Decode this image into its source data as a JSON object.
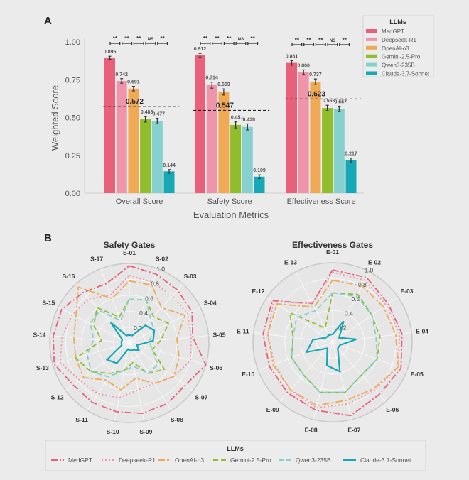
{
  "panel_a_label": "A",
  "panel_b_label": "B",
  "legend_title": "LLMs",
  "models": [
    {
      "name": "MedGPT",
      "color": "#e8607a",
      "dash": "dash-dot"
    },
    {
      "name": "Deepseek-R1",
      "color": "#ef94a9",
      "dash": "dotted"
    },
    {
      "name": "OpenAI-o3",
      "color": "#f0aa55",
      "dash": "long-dash-dot"
    },
    {
      "name": "Gemini-2.5-Pro",
      "color": "#8fbd2c",
      "dash": "dashed"
    },
    {
      "name": "Qwen3-235B",
      "color": "#86d0d0",
      "dash": "dashed"
    },
    {
      "name": "Claude-3.7-Sonnet",
      "color": "#17a8b5",
      "dash": "solid"
    }
  ],
  "chart_data": [
    {
      "type": "bar",
      "xlabel": "Evaluation Metrics",
      "ylabel": "Weighted Score",
      "ylim": [
        0,
        1
      ],
      "yticks": [
        "0.00",
        "0.25",
        "0.50",
        "0.75",
        "1.00"
      ],
      "categories": [
        "Overall Score",
        "Safety Score",
        "Effectiveness Score"
      ],
      "series": [
        {
          "name": "MedGPT",
          "values": [
            0.895,
            0.912,
            0.861
          ],
          "labels": [
            "0.895",
            "0.912",
            "0.861"
          ],
          "errors": [
            0.01,
            0.012,
            0.015
          ]
        },
        {
          "name": "Deepseek-R1",
          "values": [
            0.742,
            0.714,
            0.8
          ],
          "labels": [
            "0.742",
            "0.714",
            "0.800"
          ],
          "errors": [
            0.015,
            0.02,
            0.015
          ]
        },
        {
          "name": "OpenAI-o3",
          "values": [
            0.691,
            0.669,
            0.737
          ],
          "labels": [
            "0.691",
            "0.669",
            "0.737"
          ],
          "errors": [
            0.015,
            0.02,
            0.018
          ]
        },
        {
          "name": "Gemini-2.5-Pro",
          "values": [
            0.488,
            0.451,
            0.563
          ],
          "labels": [
            "0.488",
            "0.451",
            "0.563"
          ],
          "errors": [
            0.018,
            0.02,
            0.018
          ]
        },
        {
          "name": "Qwen3-235B",
          "values": [
            0.477,
            0.438,
            0.557
          ],
          "labels": [
            "0.477",
            "0.438",
            "0.557"
          ],
          "errors": [
            0.018,
            0.02,
            0.018
          ]
        },
        {
          "name": "Claude-3.7-Sonnet",
          "values": [
            0.144,
            0.109,
            0.217
          ],
          "labels": [
            "0.144",
            "0.109",
            "0.217"
          ],
          "errors": [
            0.012,
            0.012,
            0.015
          ]
        }
      ],
      "reference_lines": [
        {
          "value": 0.572,
          "label": "0.572"
        },
        {
          "value": 0.547,
          "label": "0.547"
        },
        {
          "value": 0.623,
          "label": "0.623"
        }
      ],
      "significance": [
        "**",
        "**",
        "**",
        "NS",
        "**"
      ],
      "legend_position": "top-right",
      "grid": false
    },
    {
      "type": "radar",
      "title": "Safety Gates",
      "axes": [
        "S-01",
        "S-02",
        "S-03",
        "S-04",
        "S-05",
        "S-06",
        "S-07",
        "S-08",
        "S-09",
        "S-10",
        "S-11",
        "S-12",
        "S-13",
        "S-14",
        "S-15",
        "S-16",
        "S-17"
      ],
      "rlim": [
        0,
        1
      ],
      "rticks": [
        "0.2",
        "0.4",
        "0.6",
        "0.8",
        "1.0"
      ],
      "series": [
        {
          "name": "MedGPT",
          "values": [
            0.97,
            0.93,
            0.9,
            0.88,
            0.8,
            1.0,
            0.88,
            0.9,
            0.9,
            0.88,
            0.88,
            0.88,
            0.98,
            0.96,
            0.95,
            0.86,
            0.8
          ]
        },
        {
          "name": "Deepseek-R1",
          "values": [
            0.85,
            0.82,
            0.8,
            0.82,
            0.78,
            0.8,
            0.7,
            0.6,
            0.6,
            0.7,
            0.75,
            0.78,
            0.9,
            0.85,
            0.8,
            0.75,
            0.65
          ]
        },
        {
          "name": "OpenAI-o3",
          "values": [
            0.78,
            0.78,
            0.6,
            0.78,
            0.6,
            0.65,
            0.7,
            0.6,
            0.45,
            0.6,
            0.55,
            0.72,
            0.7,
            0.7,
            0.75,
            0.95,
            0.6
          ]
        },
        {
          "name": "Gemini-2.5-Pro",
          "values": [
            0.55,
            0.58,
            0.45,
            0.55,
            0.4,
            0.3,
            0.55,
            0.45,
            0.25,
            0.35,
            0.45,
            0.6,
            0.7,
            0.35,
            0.5,
            0.6,
            0.35
          ]
        },
        {
          "name": "Qwen3-235B",
          "values": [
            0.55,
            0.58,
            0.4,
            0.35,
            0.25,
            0.3,
            0.45,
            0.45,
            0.3,
            0.35,
            0.5,
            0.6,
            0.55,
            0.45,
            0.55,
            0.55,
            0.3
          ]
        },
        {
          "name": "Claude-3.7-Sonnet",
          "values": [
            0.1,
            0.1,
            0.3,
            0.35,
            0.3,
            0.1,
            0.15,
            0.1,
            0.1,
            0.08,
            0.3,
            0.35,
            0.1,
            0.1,
            0.1,
            0.35,
            0.1
          ]
        }
      ]
    },
    {
      "type": "radar",
      "title": "Effectiveness Gates",
      "axes": [
        "E-01",
        "E-02",
        "E-03",
        "E-04",
        "E-05",
        "E-06",
        "E-07",
        "E-08",
        "E-09",
        "E-10",
        "E-11",
        "E-12",
        "E-13"
      ],
      "rlim": [
        0,
        1
      ],
      "rticks": [
        "0.2",
        "0.4",
        "0.6",
        "0.8",
        "1.0"
      ],
      "series": [
        {
          "name": "MedGPT",
          "values": [
            0.91,
            0.92,
            0.85,
            0.88,
            0.92,
            0.88,
            0.95,
            0.88,
            0.85,
            0.85,
            0.88,
            0.92,
            0.55
          ]
        },
        {
          "name": "Deepseek-R1",
          "values": [
            0.88,
            0.88,
            0.82,
            0.85,
            0.88,
            0.8,
            0.8,
            0.85,
            0.8,
            0.78,
            0.82,
            0.9,
            0.55
          ]
        },
        {
          "name": "OpenAI-o3",
          "values": [
            0.78,
            0.8,
            0.78,
            0.8,
            0.88,
            0.78,
            0.75,
            0.82,
            0.8,
            0.8,
            0.82,
            0.85,
            0.5
          ]
        },
        {
          "name": "Gemini-2.5-Pro",
          "values": [
            0.62,
            0.68,
            0.6,
            0.6,
            0.6,
            0.55,
            0.65,
            0.65,
            0.55,
            0.55,
            0.5,
            0.65,
            0.2
          ]
        },
        {
          "name": "Qwen3-235B",
          "values": [
            0.62,
            0.65,
            0.6,
            0.55,
            0.6,
            0.55,
            0.65,
            0.65,
            0.55,
            0.55,
            0.5,
            0.55,
            0.45
          ]
        },
        {
          "name": "Claude-3.7-Sonnet",
          "values": [
            0.1,
            0.3,
            0.1,
            0.3,
            0.1,
            0.1,
            0.38,
            0.3,
            0.1,
            0.35,
            0.25,
            0.1,
            0.1
          ]
        }
      ]
    }
  ]
}
